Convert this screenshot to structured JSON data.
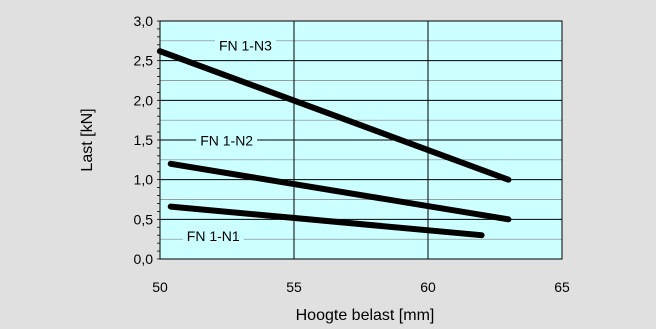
{
  "chart_data": {
    "type": "line",
    "title": "",
    "xlabel": "Hoogte belast [mm]",
    "ylabel": "Last [kN]",
    "xlim": [
      50,
      65
    ],
    "ylim": [
      0,
      3
    ],
    "x_ticks": [
      50,
      55,
      60,
      65
    ],
    "x_tick_labels": [
      "50",
      "55",
      "60",
      "65"
    ],
    "y_ticks": [
      0,
      0.5,
      1,
      1.5,
      2,
      2.5,
      3
    ],
    "y_tick_labels": [
      "0,0",
      "0,5",
      "1,0",
      "1,5",
      "2,0",
      "2,5",
      "3,0"
    ],
    "grid": true,
    "legend": "none",
    "colors": {
      "plot_background": "#ccffff",
      "figure_background": "#e0e0e0",
      "series_line": "#000000",
      "grid_major": "#000000",
      "grid_minor": "#7f7f7f"
    },
    "series": [
      {
        "name": "FN 1-N3",
        "x": [
          50,
          63
        ],
        "y": [
          2.62,
          1.0
        ],
        "label_anchor": [
          52.2,
          2.63
        ]
      },
      {
        "name": "FN 1-N2",
        "x": [
          50.4,
          63
        ],
        "y": [
          1.2,
          0.5
        ],
        "label_anchor": [
          51.5,
          1.43
        ]
      },
      {
        "name": "FN 1-N1",
        "x": [
          50.4,
          62
        ],
        "y": [
          0.66,
          0.3
        ],
        "label_anchor": [
          51.0,
          0.23
        ]
      }
    ]
  }
}
